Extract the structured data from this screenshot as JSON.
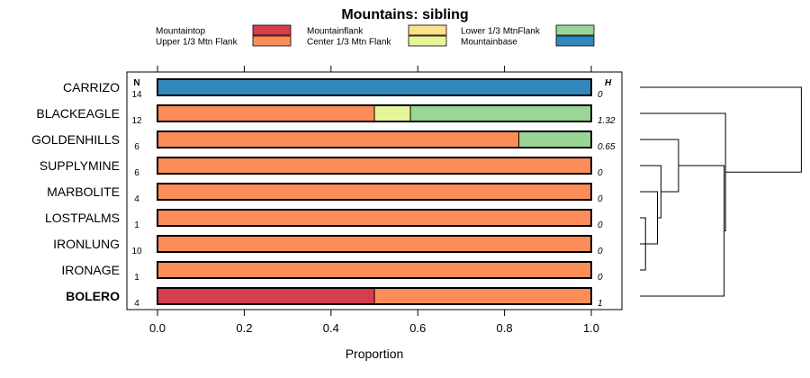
{
  "chart_data": {
    "type": "bar",
    "stacked": true,
    "orientation": "horizontal",
    "title": "Mountains: sibling",
    "xlabel": "Proportion",
    "ylabel": "",
    "xlim": [
      0,
      1
    ],
    "xticks": [
      "0.0",
      "0.2",
      "0.4",
      "0.6",
      "0.8",
      "1.0"
    ],
    "xtick_values": [
      0,
      0.2,
      0.4,
      0.6,
      0.8,
      1.0
    ],
    "n_header": "N",
    "h_header": "H",
    "legend": [
      {
        "name": "Mountaintop",
        "color": "#d53e4f"
      },
      {
        "name": "Upper 1/3 Mtn Flank",
        "color": "#fc8d59"
      },
      {
        "name": "Mountainflank",
        "color": "#fee08b"
      },
      {
        "name": "Center 1/3 Mtn Flank",
        "color": "#e6f598"
      },
      {
        "name": "Lower 1/3 MtnFlank",
        "color": "#99d594"
      },
      {
        "name": "Mountainbase",
        "color": "#3288bd"
      }
    ],
    "categories": [
      "CARRIZO",
      "BLACKEAGLE",
      "GOLDENHILLS",
      "SUPPLYMINE",
      "MARBOLITE",
      "LOSTPALMS",
      "IRONLUNG",
      "IRONAGE",
      "BOLERO"
    ],
    "highlight_category": "BOLERO",
    "n": [
      "14",
      "12",
      "6",
      "6",
      "4",
      "1",
      "10",
      "1",
      "4"
    ],
    "h": [
      "0",
      "1.32",
      "0.65",
      "0",
      "0",
      "0",
      "0",
      "0",
      "1"
    ],
    "series": [
      {
        "name": "Mountaintop",
        "values": [
          0,
          0,
          0,
          0,
          0,
          0,
          0,
          0,
          0.5
        ]
      },
      {
        "name": "Upper 1/3 Mtn Flank",
        "values": [
          0,
          0.5,
          0.833,
          1,
          1,
          1,
          1,
          1,
          0.5
        ]
      },
      {
        "name": "Mountainflank",
        "values": [
          0,
          0,
          0,
          0,
          0,
          0,
          0,
          0,
          0
        ]
      },
      {
        "name": "Center 1/3 Mtn Flank",
        "values": [
          0,
          0.083,
          0,
          0,
          0,
          0,
          0,
          0,
          0
        ]
      },
      {
        "name": "Lower 1/3 MtnFlank",
        "values": [
          0,
          0.417,
          0.167,
          0,
          0,
          0,
          0,
          0,
          0
        ]
      },
      {
        "name": "Mountainbase",
        "values": [
          1,
          0,
          0,
          0,
          0,
          0,
          0,
          0,
          0
        ]
      }
    ],
    "dendrogram": {
      "leaf_order": [
        "CARRIZO",
        "BLACKEAGLE",
        "GOLDENHILLS",
        "SUPPLYMINE",
        "MARBOLITE",
        "LOSTPALMS",
        "IRONLUNG",
        "IRONAGE",
        "BOLERO"
      ],
      "merges": [
        {
          "a": "LOSTPALMS",
          "b": "IRONAGE",
          "height": 0.08
        },
        {
          "a": "IRONLUNG",
          "b": "m0",
          "height": 0.15
        },
        {
          "a": "MARBOLITE",
          "b": "m1",
          "height": 0.25
        },
        {
          "a": "SUPPLYMINE",
          "b": "m2",
          "height": 0.3
        },
        {
          "a": "GOLDENHILLS",
          "b": "m3",
          "height": 0.55
        },
        {
          "a": "m4",
          "b": "BOLERO",
          "height": 1.2
        },
        {
          "a": "BLACKEAGLE",
          "b": "m5",
          "height": 1.22
        },
        {
          "a": "CARRIZO",
          "b": "m6",
          "height": 2.3
        }
      ]
    }
  }
}
